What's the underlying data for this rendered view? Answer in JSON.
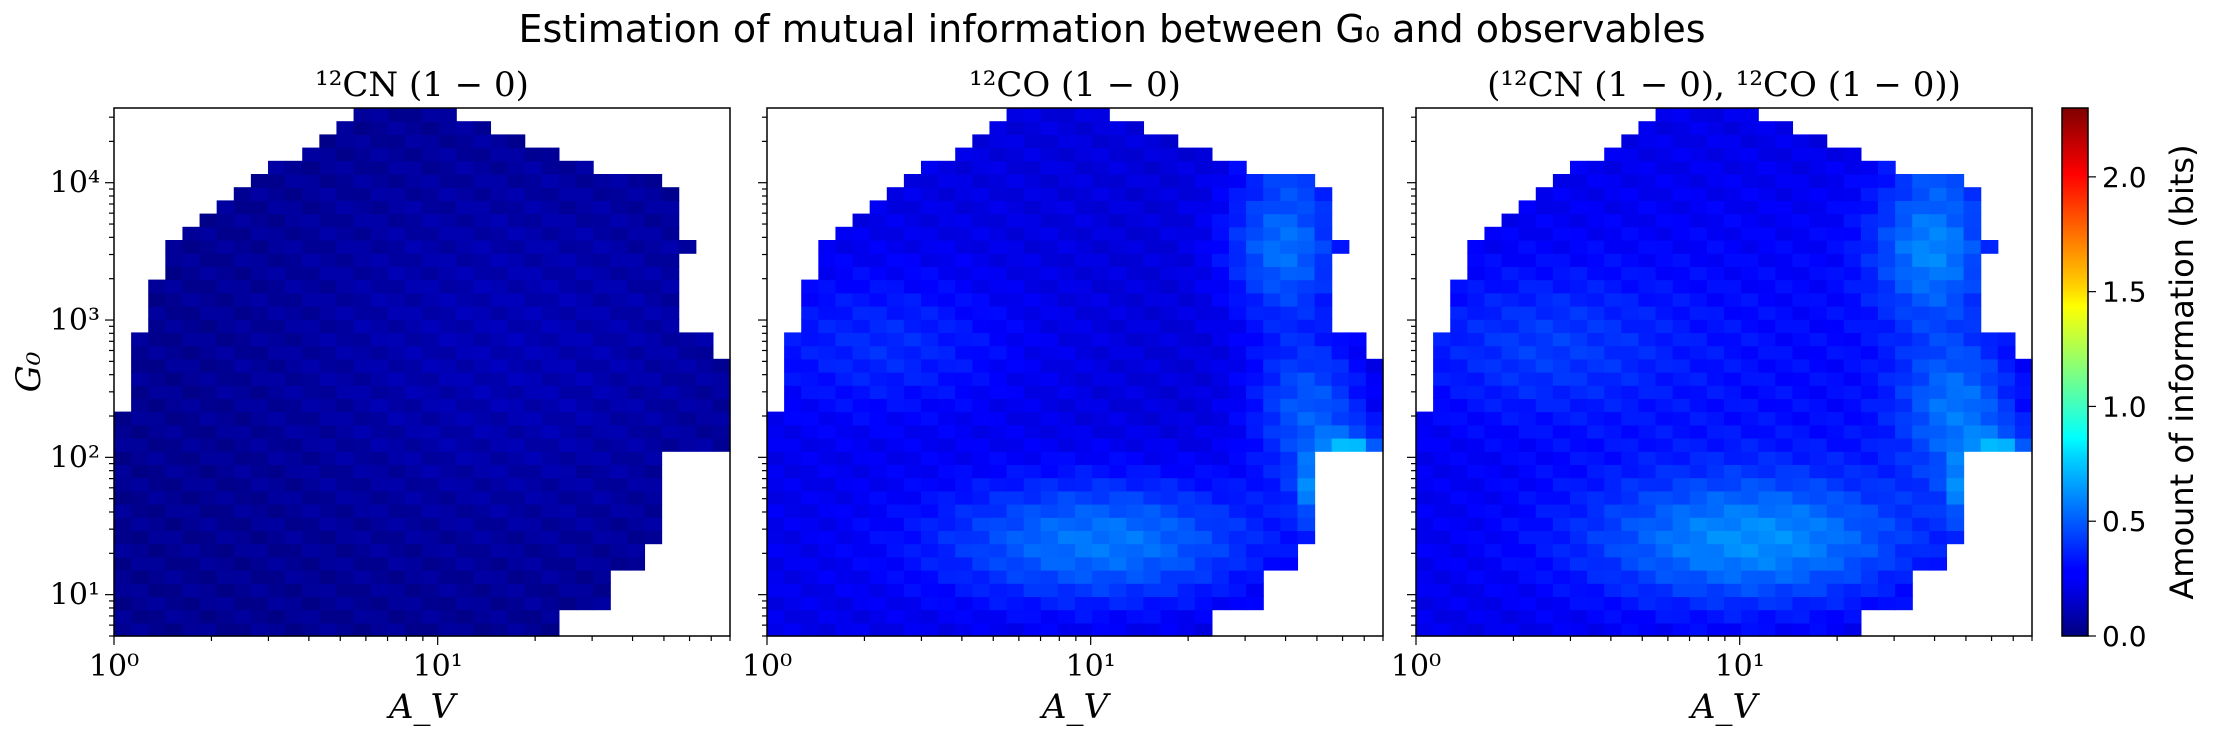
{
  "figure": {
    "title": "Estimation of mutual information between G₀ and observables"
  },
  "chart_data": [
    {
      "type": "heatmap",
      "title": "¹²CN (1 − 0)",
      "xlabel": "A_V",
      "ylabel": "G₀",
      "x_scale": "log",
      "y_scale": "log",
      "xlim": [
        1,
        80
      ],
      "ylim": [
        5,
        35000
      ],
      "xticks": [
        "10⁰",
        "10¹"
      ],
      "yticks": [
        "10¹",
        "10²",
        "10³",
        "10⁴"
      ],
      "grid": false,
      "bins": [
        36,
        40
      ],
      "color_range": [
        0.0,
        2.3
      ],
      "field": "cn"
    },
    {
      "type": "heatmap",
      "title": "¹²CO (1 − 0)",
      "xlabel": "A_V",
      "ylabel": "",
      "x_scale": "log",
      "y_scale": "log",
      "xlim": [
        1,
        80
      ],
      "ylim": [
        5,
        35000
      ],
      "xticks": [
        "10⁰",
        "10¹"
      ],
      "yticks": [],
      "grid": false,
      "bins": [
        36,
        40
      ],
      "color_range": [
        0.0,
        2.3
      ],
      "field": "co"
    },
    {
      "type": "heatmap",
      "title": "(¹²CN (1 − 0), ¹²CO (1 − 0))",
      "xlabel": "A_V",
      "ylabel": "",
      "x_scale": "log",
      "y_scale": "log",
      "xlim": [
        1,
        80
      ],
      "ylim": [
        5,
        35000
      ],
      "xticks": [
        "10⁰",
        "10¹"
      ],
      "yticks": [],
      "grid": false,
      "bins": [
        36,
        40
      ],
      "color_range": [
        0.0,
        2.3
      ],
      "field": "both"
    }
  ],
  "colorbar": {
    "label": "Amount of information (bits)",
    "colormap": "jet",
    "min": 0.0,
    "max": 2.3,
    "ticks": [
      "0.0",
      "0.5",
      "1.0",
      "1.5",
      "2.0"
    ],
    "tick_values": [
      0.0,
      0.5,
      1.0,
      1.5,
      2.0
    ]
  }
}
